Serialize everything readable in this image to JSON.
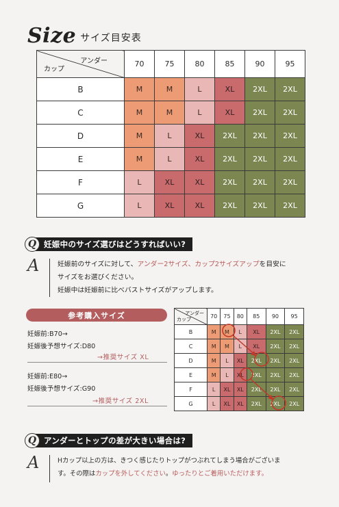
{
  "title": {
    "script": "Size",
    "sub": "サイズ目安表"
  },
  "table": {
    "under_label": "アンダー",
    "cup_label": "カップ",
    "unders": [
      "70",
      "75",
      "80",
      "85",
      "90",
      "95"
    ],
    "rows": [
      {
        "cup": "B",
        "cells": [
          "M",
          "M",
          "L",
          "XL",
          "2XL",
          "2XL"
        ]
      },
      {
        "cup": "C",
        "cells": [
          "M",
          "M",
          "L",
          "XL",
          "2XL",
          "2XL"
        ]
      },
      {
        "cup": "D",
        "cells": [
          "M",
          "L",
          "XL",
          "2XL",
          "2XL",
          "2XL"
        ]
      },
      {
        "cup": "E",
        "cells": [
          "M",
          "L",
          "XL",
          "2XL",
          "2XL",
          "2XL"
        ]
      },
      {
        "cup": "F",
        "cells": [
          "L",
          "XL",
          "XL",
          "2XL",
          "2XL",
          "2XL"
        ]
      },
      {
        "cup": "G",
        "cells": [
          "L",
          "XL",
          "XL",
          "2XL",
          "2XL",
          "2XL"
        ]
      }
    ]
  },
  "colors": {
    "M": "#ec9b75",
    "L": "#e9b7b5",
    "XL": "#c96b6c",
    "2XL": "#7b8651",
    "accent": "#b35d5e",
    "marker": "#c0392b"
  },
  "q1": {
    "mark": "Q",
    "title": "妊娠中のサイズ選びはどうすればいい?",
    "answer_mark": "A",
    "line1_pre": "妊娠前のサイズに対して、",
    "line1_hl": "アンダー2サイズ、カップ2サイズアップ",
    "line1_post": "を目安に",
    "line2": "サイズをお選びください。",
    "line3": "妊娠中は妊娠前に比べバストサイズがアップします。"
  },
  "example": {
    "title": "参考購入サイズ",
    "ex1_before": "妊娠前:B70→",
    "ex1_after": "妊娠後予想サイズ:D80",
    "ex1_rec": "→推奨サイズ XL",
    "ex2_before": "妊娠前:E80→",
    "ex2_after": "妊娠後予想サイズ:G90",
    "ex2_rec": "→推奨サイズ 2XL"
  },
  "q2": {
    "mark": "Q",
    "title": "アンダーとトップの差が大きい場合は?",
    "answer_mark": "A",
    "line1": "Hカップ以上の方は、きつく感じたりトップがつぶれてしまう場合がございま",
    "line2_pre": "す。その際は",
    "line2_hl": "カップを外してください",
    "line2_mid": "。",
    "line2_hl2": "ゆったりとご着用いただけます。"
  }
}
